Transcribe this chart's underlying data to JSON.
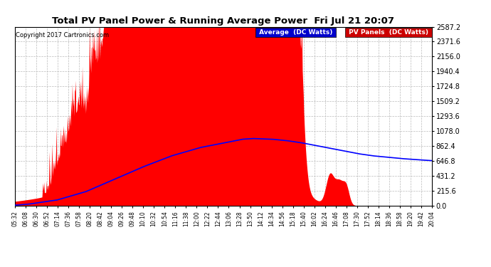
{
  "title": "Total PV Panel Power & Running Average Power  Fri Jul 21 20:07",
  "copyright": "Copyright 2017 Cartronics.com",
  "ylabel_values": [
    0.0,
    215.6,
    431.2,
    646.8,
    862.4,
    1078.0,
    1293.6,
    1509.2,
    1724.8,
    1940.4,
    2156.0,
    2371.6,
    2587.2
  ],
  "ymax": 2587.2,
  "x_tick_labels": [
    "05:32",
    "06:08",
    "06:30",
    "06:52",
    "07:14",
    "07:36",
    "07:58",
    "08:20",
    "08:42",
    "09:04",
    "09:26",
    "09:48",
    "10:10",
    "10:32",
    "10:54",
    "11:16",
    "11:38",
    "12:00",
    "12:22",
    "12:44",
    "13:06",
    "13:28",
    "13:50",
    "14:12",
    "14:34",
    "14:56",
    "15:18",
    "15:40",
    "16:02",
    "16:24",
    "16:46",
    "17:08",
    "17:30",
    "17:52",
    "18:14",
    "18:36",
    "18:58",
    "19:20",
    "19:42",
    "20:04"
  ],
  "pv_color": "#ff0000",
  "avg_color": "#0000ff",
  "bg_color": "#ffffff",
  "grid_color": "#bbbbbb",
  "legend_avg_bg": "#0000cc",
  "legend_pv_bg": "#cc0000"
}
